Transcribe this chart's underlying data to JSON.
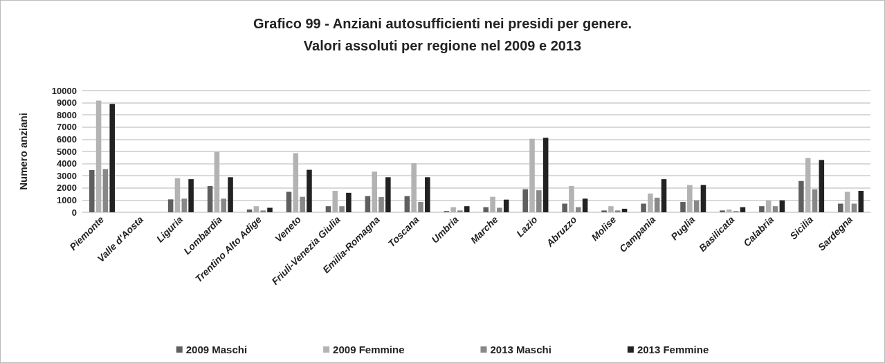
{
  "chart_data": {
    "type": "bar",
    "title": "Grafico 99 - Anziani autosufficienti nei presidi per genere.\nValori assoluti per regione nel 2009 e 2013",
    "ylabel": "Numero anziani",
    "categories": [
      "Piemonte",
      "Valle d'Aosta",
      "Liguria",
      "Lombardia",
      "Trentino Alto Adige",
      "Veneto",
      "Friuli-Venezia Giulia",
      "Emilia-Romagna",
      "Toscana",
      "Umbria",
      "Marche",
      "Lazio",
      "Abruzzo",
      "Molise",
      "Campania",
      "Puglia",
      "Basilicata",
      "Calabria",
      "Sicilia",
      "Sardegna"
    ],
    "series": [
      {
        "name": "2009 Maschi",
        "color": "#5f5f5f",
        "values": [
          3470,
          0,
          1060,
          2160,
          230,
          1680,
          500,
          1330,
          1330,
          100,
          420,
          1890,
          710,
          150,
          710,
          850,
          150,
          500,
          2570,
          710
        ]
      },
      {
        "name": "2009 Femmine",
        "color": "#b3b3b3",
        "values": [
          9170,
          0,
          2800,
          4960,
          500,
          4860,
          1760,
          3340,
          4030,
          420,
          1270,
          6040,
          2160,
          500,
          1540,
          2240,
          230,
          980,
          4460,
          1680
        ]
      },
      {
        "name": "2013 Maschi",
        "color": "#888888",
        "values": [
          3550,
          0,
          1120,
          1120,
          150,
          1270,
          500,
          1250,
          850,
          150,
          370,
          1810,
          420,
          150,
          1200,
          980,
          100,
          500,
          1890,
          710
        ]
      },
      {
        "name": "2013 Femmine",
        "color": "#222222",
        "values": [
          8900,
          0,
          2720,
          2880,
          370,
          3490,
          1600,
          2880,
          2880,
          500,
          1040,
          6120,
          1120,
          290,
          2720,
          2240,
          420,
          980,
          4300,
          1760
        ]
      }
    ],
    "ylim": [
      0,
      10000
    ],
    "yticks": [
      0,
      1000,
      2000,
      3000,
      4000,
      5000,
      6000,
      7000,
      8000,
      9000,
      10000
    ],
    "grid": "y",
    "legend": "bottom"
  }
}
